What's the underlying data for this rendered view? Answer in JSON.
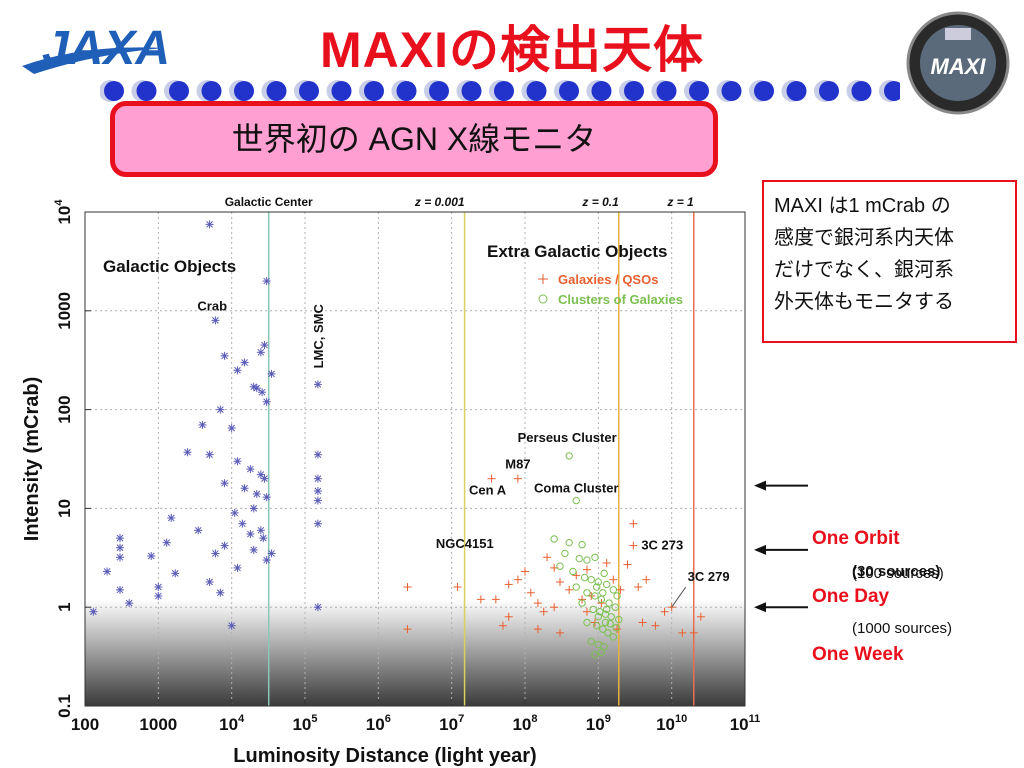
{
  "header": {
    "title": "MAXIの検出天体",
    "subtitle": "世界初の AGN X線モニタ",
    "jaxa_logo_text": "JAXA",
    "maxi_logo_text": "MAXI",
    "accent_color": "#e8101c",
    "dot_color": "#2233cc"
  },
  "note": {
    "lines": [
      "MAXI は1 mCrab の",
      "感度で銀河系内天体",
      "だけでなく、銀河系",
      "外天体もモニタする"
    ]
  },
  "markers": [
    {
      "label": "One Orbit",
      "sources": "(30 sources)",
      "intensity_mcrab": 3.8
    },
    {
      "label": "One Day",
      "sources": "(100 sources)",
      "intensity_mcrab": 1.0
    },
    {
      "label": "One Week",
      "sources": "(1000 sources)",
      "intensity_mcrab": 17
    }
  ],
  "chart_data": {
    "type": "scatter",
    "xlabel": "Luminosity Distance (light year)",
    "ylabel": "Intensity (mCrab)",
    "x_scale": "log",
    "y_scale": "log",
    "xlim": [
      100,
      100000000000
    ],
    "ylim": [
      0.1,
      10000
    ],
    "x_ticks": [
      {
        "value": 100,
        "label": "100"
      },
      {
        "value": 1000,
        "label": "1000"
      },
      {
        "value": 10000,
        "label": "10",
        "exp": "4"
      },
      {
        "value": 100000,
        "label": "10",
        "exp": "5"
      },
      {
        "value": 1000000,
        "label": "10",
        "exp": "6"
      },
      {
        "value": 10000000,
        "label": "10",
        "exp": "7"
      },
      {
        "value": 100000000,
        "label": "10",
        "exp": "8"
      },
      {
        "value": 1000000000,
        "label": "10",
        "exp": "9"
      },
      {
        "value": 10000000000,
        "label": "10",
        "exp": "10"
      },
      {
        "value": 100000000000,
        "label": "10",
        "exp": "11"
      }
    ],
    "y_ticks": [
      {
        "value": 0.1,
        "label": "0.1"
      },
      {
        "value": 1,
        "label": "1"
      },
      {
        "value": 10,
        "label": "10"
      },
      {
        "value": 100,
        "label": "100"
      },
      {
        "value": 1000,
        "label": "1000"
      },
      {
        "value": 10000,
        "label": "10",
        "exp": "4"
      }
    ],
    "grid": true,
    "background_gradient_below_mcrab": 1.2,
    "vertical_lines": [
      {
        "label": "Galactic Center",
        "x": 32000,
        "color": "#88c8b8"
      },
      {
        "label": "z = 0.001",
        "x": 15000000,
        "color": "#d8d060"
      },
      {
        "label": "z = 0.1",
        "x": 1900000000,
        "color": "#e8b040"
      },
      {
        "label": "z = 1",
        "x": 20000000000,
        "color": "#e87050"
      }
    ],
    "region_labels": [
      "Galactic Objects",
      "Extra Galactic Objects"
    ],
    "series": [
      {
        "name": "",
        "marker": "asterisk",
        "color": "#5a5ab8",
        "points": [
          [
            5000,
            7500
          ],
          [
            30000,
            2000
          ],
          [
            6000,
            800
          ],
          [
            8000,
            350
          ],
          [
            15000,
            300
          ],
          [
            25000,
            380
          ],
          [
            28000,
            450
          ],
          [
            12000,
            250
          ],
          [
            20000,
            170
          ],
          [
            22000,
            165
          ],
          [
            26000,
            150
          ],
          [
            35000,
            230
          ],
          [
            30000,
            120
          ],
          [
            7000,
            100
          ],
          [
            4000,
            70
          ],
          [
            10000,
            65
          ],
          [
            2500,
            37
          ],
          [
            5000,
            35
          ],
          [
            12000,
            30
          ],
          [
            18000,
            25
          ],
          [
            25000,
            22
          ],
          [
            28000,
            20
          ],
          [
            8000,
            18
          ],
          [
            15000,
            16
          ],
          [
            22000,
            14
          ],
          [
            30000,
            13
          ],
          [
            20000,
            10
          ],
          [
            11000,
            9
          ],
          [
            1500,
            8
          ],
          [
            14000,
            7
          ],
          [
            25000,
            6
          ],
          [
            3500,
            6
          ],
          [
            18000,
            5.5
          ],
          [
            27000,
            5
          ],
          [
            300,
            5
          ],
          [
            300,
            4
          ],
          [
            1300,
            4.5
          ],
          [
            8000,
            4.2
          ],
          [
            6000,
            3.5
          ],
          [
            20000,
            3.8
          ],
          [
            35000,
            3.5
          ],
          [
            300,
            3.2
          ],
          [
            800,
            3.3
          ],
          [
            30000,
            3
          ],
          [
            12000,
            2.5
          ],
          [
            200,
            2.3
          ],
          [
            1700,
            2.2
          ],
          [
            5000,
            1.8
          ],
          [
            300,
            1.5
          ],
          [
            1000,
            1.3
          ],
          [
            7000,
            1.4
          ],
          [
            400,
            1.1
          ],
          [
            1000,
            1.6
          ],
          [
            130,
            0.9
          ],
          [
            10000,
            0.65
          ],
          [
            150000,
            180
          ],
          [
            150000,
            35
          ],
          [
            150000,
            20
          ],
          [
            150000,
            15
          ],
          [
            150000,
            12
          ],
          [
            150000,
            7
          ],
          [
            150000,
            1
          ]
        ]
      },
      {
        "name": "Galaxies / QSOs",
        "marker": "plus",
        "color": "#e86030",
        "points": [
          [
            35000000,
            20
          ],
          [
            80000000,
            20
          ],
          [
            3000000000,
            7
          ],
          [
            3000000000,
            4.2
          ],
          [
            2500000,
            1.6
          ],
          [
            2500000,
            0.6
          ],
          [
            12000000,
            1.6
          ],
          [
            25000000,
            1.2
          ],
          [
            40000000,
            1.2
          ],
          [
            60000000,
            1.7
          ],
          [
            80000000,
            1.9
          ],
          [
            100000000,
            2.3
          ],
          [
            120000000,
            1.4
          ],
          [
            150000000,
            1.1
          ],
          [
            200000000,
            3.2
          ],
          [
            250000000,
            2.5
          ],
          [
            300000000,
            1.8
          ],
          [
            400000000,
            1.5
          ],
          [
            500000000,
            2.1
          ],
          [
            600000000,
            1.2
          ],
          [
            700000000,
            0.9
          ],
          [
            800000000,
            1.3
          ],
          [
            900000000,
            0.7
          ],
          [
            1100000000,
            1.1
          ],
          [
            1300000000,
            2.8
          ],
          [
            1600000000,
            1.9
          ],
          [
            2000000000,
            1.5
          ],
          [
            2500000000,
            2.7
          ],
          [
            3500000000,
            1.6
          ],
          [
            4500000000,
            1.9
          ],
          [
            6000000000,
            0.65
          ],
          [
            8000000000,
            0.9
          ],
          [
            10000000000,
            1
          ],
          [
            14000000000,
            0.55
          ],
          [
            20000000000,
            0.55
          ],
          [
            25000000000,
            0.8
          ],
          [
            60000000,
            0.8
          ],
          [
            50000000,
            0.65
          ],
          [
            150000000,
            0.6
          ],
          [
            300000000,
            0.55
          ],
          [
            250000000,
            1.0
          ],
          [
            1800000000,
            0.6
          ],
          [
            4000000000,
            0.7
          ],
          [
            700000000,
            2.4
          ],
          [
            180000000,
            0.9
          ]
        ]
      },
      {
        "name": "Clusters of Galaxies",
        "marker": "circle",
        "color": "#7cc050",
        "points": [
          [
            400000000,
            34
          ],
          [
            500000000,
            12
          ],
          [
            250000000,
            4.9
          ],
          [
            400000000,
            4.5
          ],
          [
            600000000,
            4.3
          ],
          [
            350000000,
            3.5
          ],
          [
            550000000,
            3.1
          ],
          [
            700000000,
            3.0
          ],
          [
            900000000,
            3.2
          ],
          [
            1200000000,
            2.2
          ],
          [
            300000000,
            2.6
          ],
          [
            450000000,
            2.3
          ],
          [
            650000000,
            2.0
          ],
          [
            800000000,
            1.9
          ],
          [
            1000000000,
            1.8
          ],
          [
            1300000000,
            1.7
          ],
          [
            1600000000,
            1.5
          ],
          [
            500000000,
            1.6
          ],
          [
            700000000,
            1.4
          ],
          [
            900000000,
            1.3
          ],
          [
            1100000000,
            1.2
          ],
          [
            1400000000,
            1.1
          ],
          [
            1700000000,
            1.0
          ],
          [
            600000000,
            1.1
          ],
          [
            850000000,
            0.95
          ],
          [
            1050000000,
            0.9
          ],
          [
            1250000000,
            0.85
          ],
          [
            1500000000,
            0.8
          ],
          [
            1900000000,
            0.75
          ],
          [
            700000000,
            0.7
          ],
          [
            950000000,
            0.65
          ],
          [
            1150000000,
            0.6
          ],
          [
            1350000000,
            0.55
          ],
          [
            1600000000,
            0.5
          ],
          [
            800000000,
            0.45
          ],
          [
            1000000000,
            0.42
          ],
          [
            1200000000,
            0.4
          ],
          [
            900000000,
            0.33
          ],
          [
            1100000000,
            0.35
          ],
          [
            1450000000,
            0.68
          ],
          [
            1750000000,
            0.62
          ],
          [
            1300000000,
            0.95
          ],
          [
            1150000000,
            1.4
          ],
          [
            950000000,
            1.6
          ],
          [
            1800000000,
            1.3
          ],
          [
            1000000000,
            0.8
          ],
          [
            1250000000,
            0.7
          ]
        ]
      }
    ],
    "annotations": [
      {
        "text": "Crab",
        "x": 6000,
        "y": 800
      },
      {
        "text": "LMC, SMC",
        "x": 150000,
        "y": 180
      },
      {
        "text": "Perseus Cluster",
        "x": 400000000,
        "y": 34
      },
      {
        "text": "M87",
        "x": 80000000,
        "y": 20
      },
      {
        "text": "Cen A",
        "x": 35000000,
        "y": 20
      },
      {
        "text": "Coma Cluster",
        "x": 500000000,
        "y": 12
      },
      {
        "text": "NGC4151",
        "x": 60000000,
        "y": 3
      },
      {
        "text": "3C 273",
        "x": 3000000000,
        "y": 4.2
      },
      {
        "text": "3C 279",
        "x": 10000000000,
        "y": 1
      }
    ]
  }
}
